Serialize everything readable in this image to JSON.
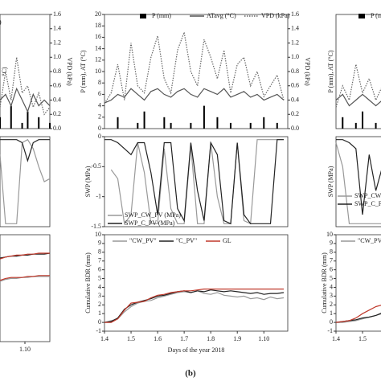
{
  "chart_data": [
    {
      "type": "combo",
      "x": [
        5.1,
        5.3,
        5.5,
        5.7,
        5.9,
        6.1,
        6.3,
        6.5,
        6.7,
        6.9
      ],
      "xlim": [
        5.1,
        6.9
      ],
      "ylim": [
        0,
        20
      ],
      "y2lim": [
        0,
        1.6
      ],
      "y2ticks": [
        {
          "value": 0,
          "label": "0.0"
        },
        0.2,
        0.4,
        0.6,
        0.8,
        {
          "value": 1,
          "label": "1.0"
        },
        1.2,
        1.4,
        1.6
      ],
      "ylabel": "°C)",
      "y2label": "VPD (kPa)",
      "series": [
        {
          "style": "bar",
          "color": "#000000",
          "values": [
            2,
            0,
            4,
            0,
            1,
            3,
            0,
            2,
            0,
            1
          ]
        },
        {
          "style": "solid",
          "color": "#555555",
          "values": [
            5,
            6,
            4,
            7,
            5,
            3,
            6,
            4,
            5,
            4
          ]
        },
        {
          "name": "Pa)",
          "style": "dotted",
          "color": "#666666",
          "axis": "y2",
          "values": [
            0.3,
            0.8,
            0.4,
            1.0,
            0.5,
            0.6,
            0.3,
            0.5,
            0.2,
            0.3
          ]
        }
      ]
    },
    {
      "type": "line",
      "x": [
        5.1,
        5.3,
        5.5,
        5.7,
        5.9,
        6.1,
        6.3,
        6.5,
        6.7,
        6.9
      ],
      "xlim": [
        5.1,
        6.9
      ],
      "ylim": [
        -1.5,
        0
      ],
      "series": [
        {
          "color": "#999999",
          "values": [
            -0.3,
            -1.45,
            -1.45,
            -1.45,
            -0.1,
            -0.05,
            -0.2,
            -0.5,
            -0.75,
            -0.7
          ]
        },
        {
          "color": "#222222",
          "values": [
            -0.05,
            -0.05,
            -0.05,
            -0.05,
            -0.1,
            -0.4,
            -0.1,
            -0.05,
            -0.05,
            -0.05
          ]
        }
      ]
    },
    {
      "type": "line",
      "x": [
        5.1,
        5.3,
        5.5,
        5.7,
        5.9,
        6.1,
        6.3,
        6.5,
        6.7,
        6.9
      ],
      "xlim": [
        5.1,
        6.9
      ],
      "ylim": [
        -1,
        10
      ],
      "xticks": [
        {
          "value": 6,
          "label": "1.10"
        }
      ],
      "series": [
        {
          "color": "#222222",
          "values": [
            7.6,
            7.7,
            7.8,
            7.8,
            7.9,
            7.9,
            8.0,
            8.0,
            8.0,
            8.1
          ]
        },
        {
          "color": "#c0392b",
          "values": [
            7.5,
            7.7,
            7.8,
            7.9,
            7.9,
            8.0,
            8.0,
            8.1,
            8.1,
            8.1
          ]
        },
        {
          "color": "#999999",
          "values": [
            5.2,
            5.4,
            5.5,
            5.5,
            5.6,
            5.6,
            5.7,
            5.7,
            5.7,
            5.7
          ]
        },
        {
          "color": "#c0392b",
          "values": [
            5.3,
            5.5,
            5.6,
            5.6,
            5.6,
            5.7,
            5.7,
            5.8,
            5.8,
            5.8
          ]
        }
      ]
    },
    {
      "type": "combo",
      "x": [
        0,
        0.25,
        0.5,
        0.75,
        1,
        1.25,
        1.5,
        1.75,
        2,
        2.25,
        2.5,
        2.75,
        3,
        3.25,
        3.5,
        3.75,
        4,
        4.25,
        4.5,
        4.75,
        5,
        5.25,
        5.5,
        5.75,
        6,
        6.25,
        6.5,
        6.75
      ],
      "xlim": [
        0,
        6.9
      ],
      "ylim": [
        0,
        20
      ],
      "yticks": [
        0,
        2,
        4,
        6,
        8,
        10,
        12,
        14,
        16,
        18,
        20
      ],
      "y2lim": [
        0,
        1.6
      ],
      "y2ticks": [
        {
          "value": 0,
          "label": "0.0"
        },
        0.2,
        0.4,
        0.6,
        0.8,
        {
          "value": 1,
          "label": "1.0"
        },
        1.2,
        1.4,
        1.6
      ],
      "ylabel": "P (mm), AT (°C)",
      "y2label": "VPD (kPa)",
      "series": [
        {
          "name": "P (mm)",
          "style": "bar",
          "color": "#000000",
          "values": [
            0,
            0,
            2,
            0,
            0,
            1,
            3,
            0,
            0,
            2,
            1,
            0,
            0,
            1,
            0,
            4,
            0,
            2,
            0,
            1,
            0,
            0,
            1,
            0,
            2,
            0,
            1,
            0
          ]
        },
        {
          "name": "ATavg (°C)",
          "style": "solid",
          "color": "#555555",
          "values": [
            4.5,
            5,
            6,
            5.5,
            7,
            6,
            5,
            6.5,
            7,
            6,
            5.5,
            6.5,
            7,
            6,
            5.5,
            7,
            6.5,
            6,
            7,
            5.5,
            6,
            6.5,
            5.5,
            6,
            5,
            5.5,
            6,
            5
          ]
        },
        {
          "name": "VPD (kPa)",
          "style": "dotted",
          "color": "#666666",
          "axis": "y2",
          "values": [
            0.35,
            0.5,
            0.9,
            0.4,
            1.2,
            0.6,
            0.5,
            1.0,
            1.3,
            0.7,
            0.5,
            1.1,
            1.35,
            0.8,
            0.6,
            1.25,
            1.0,
            0.7,
            1.1,
            0.5,
            0.9,
            1.0,
            0.6,
            0.8,
            0.45,
            0.6,
            0.75,
            0.4
          ]
        }
      ]
    },
    {
      "type": "line",
      "x": [
        0,
        0.25,
        0.5,
        0.75,
        1,
        1.25,
        1.5,
        1.75,
        2,
        2.25,
        2.5,
        2.75,
        3,
        3.25,
        3.5,
        3.75,
        4,
        4.25,
        4.5,
        4.75,
        5,
        5.25,
        5.5,
        5.75,
        6,
        6.25,
        6.5,
        6.75
      ],
      "xlim": [
        0,
        6.9
      ],
      "ylim": [
        -1.5,
        0
      ],
      "yticks": [
        0,
        -0.5,
        -1,
        -1.5
      ],
      "ylabel": "SWP (MPa)",
      "series": [
        {
          "name": "SWP_CW_PV (MPa)",
          "color": "#999999",
          "values": [
            null,
            -0.55,
            -0.7,
            -1.45,
            -1.3,
            -0.1,
            -0.6,
            -1.45,
            -1.45,
            -0.2,
            -1.2,
            -1.45,
            -1.45,
            -0.15,
            -1.45,
            -1.45,
            -0.1,
            -1.0,
            -1.45,
            -1.45,
            -0.1,
            -1.4,
            -1.45,
            -0.05,
            -0.05,
            -0.05,
            -0.05,
            -0.05
          ]
        },
        {
          "name": "SWP_C_PV (MPa)",
          "color": "#222222",
          "values": [
            -0.05,
            -0.05,
            -0.1,
            -0.2,
            -0.3,
            -0.1,
            -0.1,
            -0.6,
            -1.3,
            -0.1,
            -0.1,
            -1.2,
            -1.4,
            -0.1,
            -0.9,
            -1.4,
            -0.1,
            -0.3,
            -1.4,
            -1.45,
            -0.1,
            -1.3,
            -1.45,
            -1.45,
            -1.45,
            -1.45,
            -0.05,
            -0.05
          ]
        }
      ]
    },
    {
      "type": "line",
      "x": [
        0,
        0.25,
        0.5,
        0.75,
        1,
        1.25,
        1.5,
        1.75,
        2,
        2.25,
        2.5,
        2.75,
        3,
        3.25,
        3.5,
        3.75,
        4,
        4.25,
        4.5,
        4.75,
        5,
        5.25,
        5.5,
        5.75,
        6,
        6.25,
        6.5,
        6.75
      ],
      "xlim": [
        0,
        6.9
      ],
      "ylim": [
        -1,
        10
      ],
      "yticks": [
        -1,
        0,
        1,
        2,
        3,
        4,
        5,
        6,
        7,
        8,
        9,
        10
      ],
      "ylabel": "Cumulative BDR (mm)",
      "xlabel": "Days of the year 2018",
      "xticks": [
        {
          "value": 0,
          "label": "1.4"
        },
        {
          "value": 1,
          "label": "1.5"
        },
        {
          "value": 2,
          "label": "1.6"
        },
        {
          "value": 3,
          "label": "1.7"
        },
        {
          "value": 4,
          "label": "1.8"
        },
        {
          "value": 5,
          "label": "1.9"
        },
        {
          "value": 6,
          "label": "1.10"
        }
      ],
      "series": [
        {
          "name": "\"CW_PV\"",
          "color": "#999999",
          "values": [
            0,
            0.2,
            0.4,
            1.2,
            1.8,
            2.2,
            2.4,
            2.5,
            2.8,
            3.0,
            3.2,
            3.4,
            3.5,
            3.4,
            3.6,
            3.3,
            3.2,
            3.4,
            3.1,
            3.0,
            2.9,
            3.0,
            2.7,
            2.8,
            2.6,
            2.9,
            2.7,
            2.8
          ]
        },
        {
          "name": "\"C_PV\"",
          "color": "#222222",
          "values": [
            0,
            0.1,
            0.5,
            1.5,
            2.0,
            2.3,
            2.5,
            2.7,
            3.0,
            3.1,
            3.3,
            3.5,
            3.6,
            3.4,
            3.6,
            3.5,
            3.7,
            3.6,
            3.5,
            3.6,
            3.5,
            3.4,
            3.3,
            3.4,
            3.2,
            3.3,
            3.3,
            3.4
          ]
        },
        {
          "name": "GL",
          "color": "#c0392b",
          "values": [
            0,
            0,
            0.4,
            1.4,
            2.2,
            2.3,
            2.4,
            2.8,
            3.1,
            3.2,
            3.4,
            3.5,
            3.6,
            3.6,
            3.7,
            3.8,
            3.8,
            3.8,
            3.8,
            3.8,
            3.8,
            3.8,
            3.8,
            3.8,
            3.8,
            3.8,
            3.8,
            3.8
          ]
        }
      ]
    },
    {
      "type": "combo",
      "x": [
        0,
        0.25,
        0.5,
        0.75,
        1,
        1.25,
        1.5,
        1.75
      ],
      "xlim": [
        0,
        6.9
      ],
      "ylim": [
        0,
        20
      ],
      "y2lim": [
        0,
        1.6
      ],
      "ylabel": "P (mm), AT (°C)",
      "series": [
        {
          "name": "P (m",
          "style": "bar",
          "color": "#000000",
          "values": [
            0,
            2,
            0,
            1,
            3,
            0,
            1,
            0
          ]
        },
        {
          "style": "solid",
          "color": "#555555",
          "values": [
            5,
            6,
            4,
            5,
            6,
            5,
            4,
            5
          ]
        },
        {
          "style": "dotted",
          "color": "#666666",
          "axis": "y2",
          "values": [
            0.3,
            0.6,
            0.4,
            0.9,
            0.5,
            0.7,
            0.4,
            0.6
          ]
        }
      ]
    },
    {
      "type": "line",
      "x": [
        0,
        0.25,
        0.5,
        0.75,
        1,
        1.25,
        1.5,
        1.75
      ],
      "xlim": [
        0,
        6.9
      ],
      "ylim": [
        -1.5,
        0
      ],
      "ylabel": "SWP (MPa)",
      "series": [
        {
          "name": "SWP_CW_PV (M",
          "color": "#999999",
          "values": [
            -0.1,
            -0.5,
            -1.45,
            -1.45,
            -1.45,
            -1.45,
            -1.45,
            -1.45
          ]
        },
        {
          "name": "SWP_C_PV (M",
          "color": "#222222",
          "values": [
            -0.05,
            -0.05,
            -0.1,
            -0.2,
            -1.3,
            -0.3,
            -0.9,
            -0.5
          ]
        }
      ]
    },
    {
      "type": "line",
      "x": [
        0,
        0.25,
        0.5,
        0.75,
        1,
        1.25,
        1.5,
        1.75
      ],
      "xlim": [
        0,
        6.9
      ],
      "ylim": [
        -1,
        10
      ],
      "yticks": [
        -1,
        0,
        1,
        2,
        3,
        4,
        5,
        6,
        7,
        8,
        9,
        10
      ],
      "ylabel": "Cumulative BDR (mm)",
      "xticks": [
        {
          "value": 0,
          "label": "1.4"
        },
        {
          "value": 1,
          "label": "1.5"
        }
      ],
      "series": [
        {
          "name": "\"CW_PV\"",
          "color": "#999999",
          "values": [
            0,
            0,
            0.1,
            0.2,
            0.4,
            0.6,
            0.8,
            1.0
          ]
        },
        {
          "color": "#222222",
          "values": [
            0,
            0.1,
            0.2,
            0.3,
            0.5,
            0.6,
            0.8,
            1.1
          ]
        },
        {
          "color": "#c0392b",
          "values": [
            0,
            0.1,
            0.2,
            0.5,
            1.0,
            1.4,
            1.8,
            2.0
          ]
        }
      ]
    }
  ],
  "caption": "(b)"
}
